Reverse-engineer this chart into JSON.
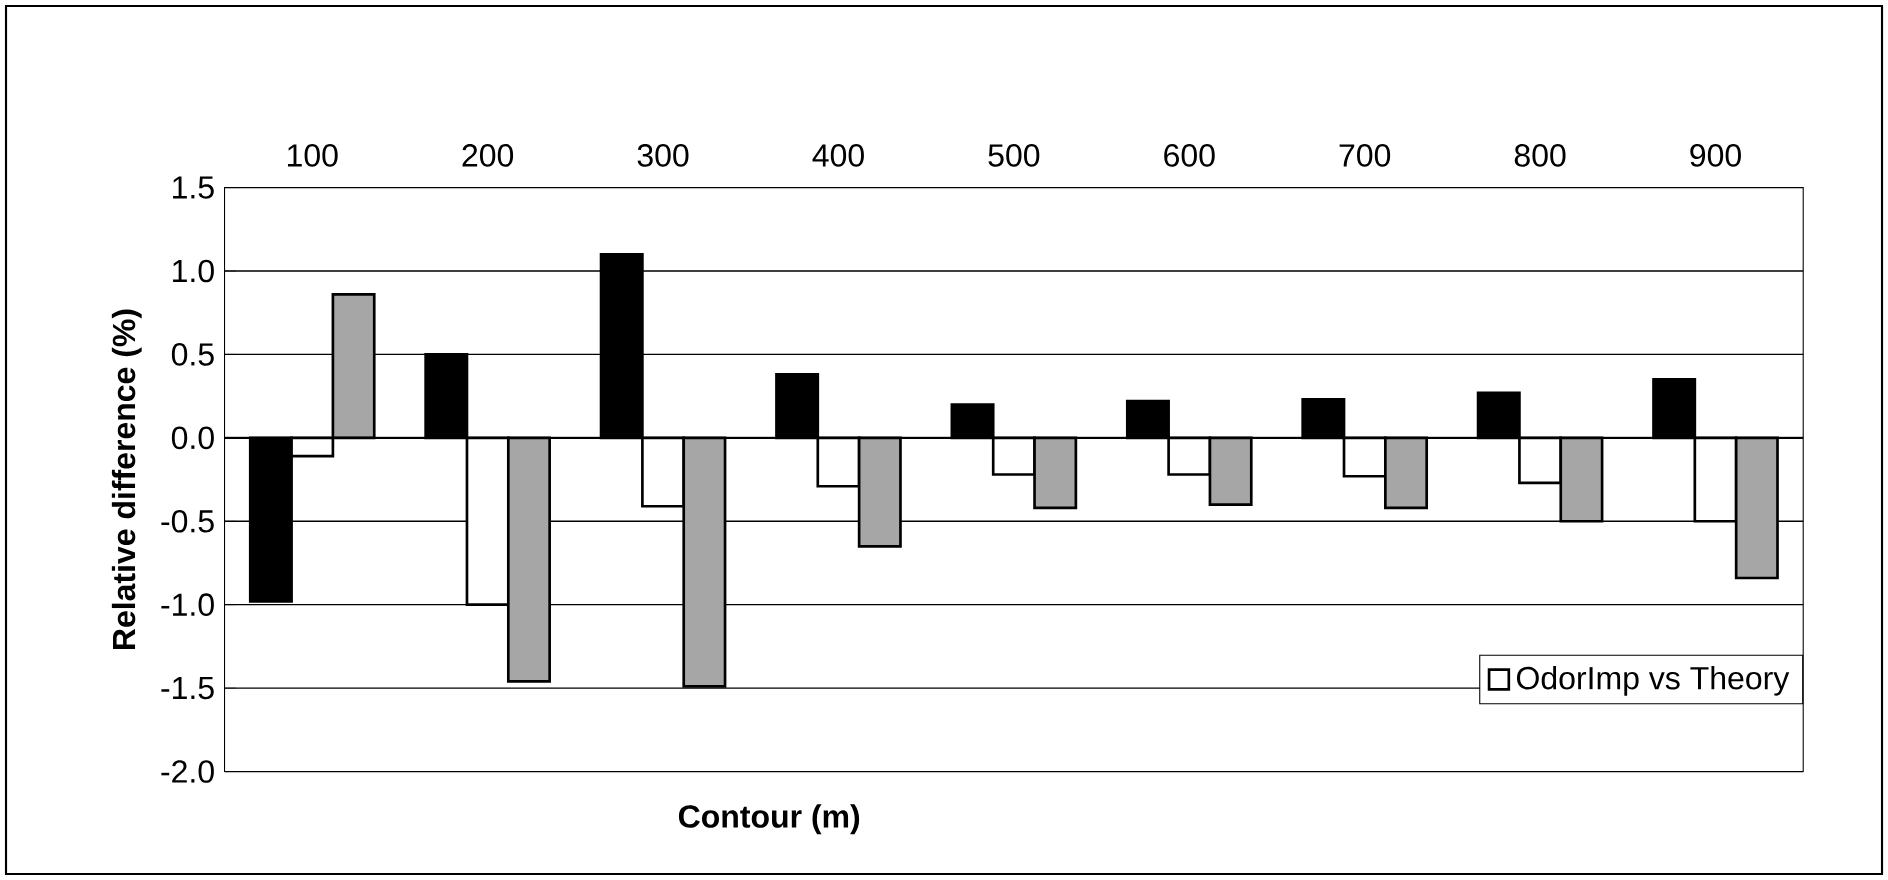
{
  "chart_data": {
    "type": "bar",
    "xlabel": "Contour (m)",
    "ylabel": "Relative difference (%)",
    "categories": [
      "100",
      "200",
      "300",
      "400",
      "500",
      "600",
      "700",
      "800",
      "900"
    ],
    "series": [
      {
        "color": "#000000",
        "values": [
          -0.98,
          0.5,
          1.1,
          0.38,
          0.2,
          0.22,
          0.23,
          0.27,
          0.35
        ]
      },
      {
        "name": "OdorImp vs Theory",
        "color": "#ffffff",
        "values": [
          -0.11,
          -1.0,
          -0.41,
          -0.29,
          -0.22,
          -0.22,
          -0.23,
          -0.27,
          -0.5
        ]
      },
      {
        "color": "#a6a6a6",
        "values": [
          0.86,
          -1.46,
          -1.49,
          -0.65,
          -0.42,
          -0.4,
          -0.42,
          -0.5,
          -0.84
        ]
      }
    ],
    "ylim": [
      -2.0,
      1.5
    ],
    "yticks": [
      {
        "value": -2.0,
        "label": "-2.0"
      },
      {
        "value": -1.5,
        "label": "-1.5"
      },
      {
        "value": -1.0,
        "label": "-1.0"
      },
      {
        "value": -0.5,
        "label": "-0.5"
      },
      {
        "value": 0.0,
        "label": "0.0"
      },
      {
        "value": 0.5,
        "label": "0.5"
      },
      {
        "value": 1.0,
        "label": "1.0"
      },
      {
        "value": 1.5,
        "label": "1.5"
      }
    ],
    "grid": "y",
    "legend": "bottom right"
  }
}
